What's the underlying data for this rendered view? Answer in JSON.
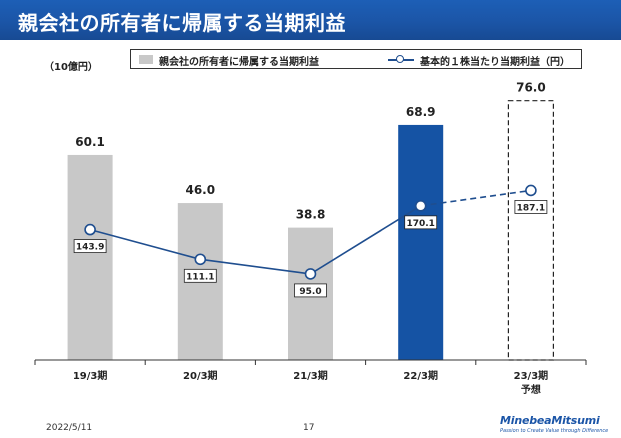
{
  "title": "親会社の所有者に帰属する当期利益",
  "unit_label": "（10億円）",
  "legend": {
    "bar_label": "親会社の所有者に帰属する当期利益",
    "line_label": "基本的１株当たり当期利益（円）"
  },
  "chart_data": {
    "type": "bar",
    "categories": [
      "19/3期",
      "20/3期",
      "21/3期",
      "22/3期",
      "23/3期"
    ],
    "category_sub": [
      "",
      "",
      "",
      "",
      "予想"
    ],
    "series": [
      {
        "name": "親会社の所有者に帰属する当期利益",
        "values": [
          60.1,
          46.0,
          38.8,
          68.9,
          76.0
        ],
        "labels": [
          "60.1",
          "46.0",
          "38.8",
          "68.9",
          "76.0"
        ],
        "styles": [
          "actual",
          "actual",
          "actual",
          "highlight",
          "forecast"
        ]
      },
      {
        "name": "基本的１株当たり当期利益（円）",
        "values": [
          143.9,
          111.1,
          95.0,
          170.1,
          187.1
        ],
        "labels": [
          "143.9",
          "111.1",
          "95.0",
          "170.1",
          "187.1"
        ],
        "line_styles": [
          "solid",
          "solid",
          "solid",
          "dashed"
        ]
      }
    ],
    "ylim": [
      0,
      85
    ],
    "eps_ylim": [
      0,
      320
    ],
    "colors": {
      "bar": "#c8c8c8",
      "highlight": "#1553a4",
      "line": "#1f4e8f",
      "forecast_border": "#222222"
    }
  },
  "footer": {
    "date": "2022/5/11",
    "page": "17",
    "logo": "MinebeaMitsumi",
    "tagline": "Passion to Create Value through Difference"
  }
}
